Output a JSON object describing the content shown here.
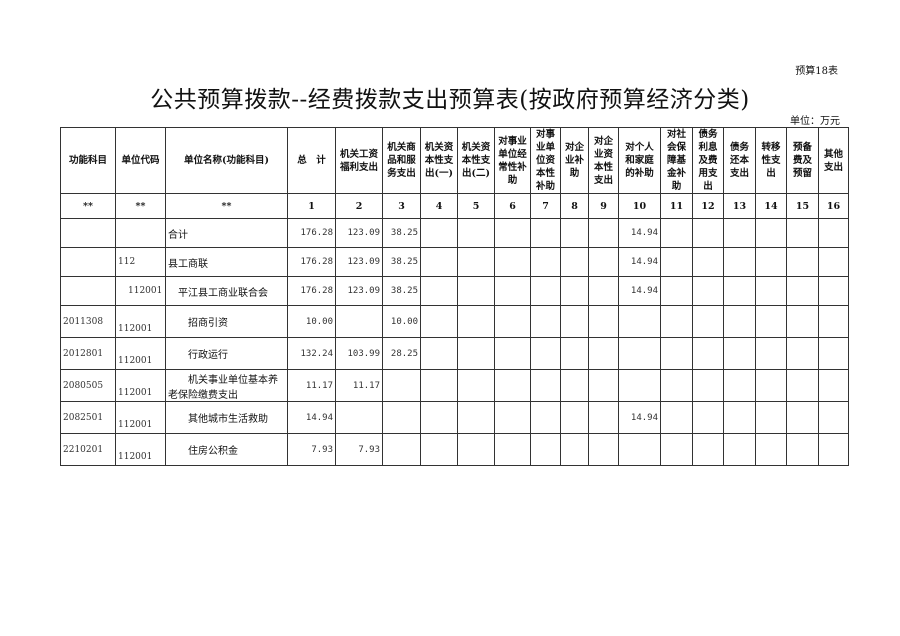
{
  "form_no": "预算18表",
  "title": "公共预算拨款--经费拨款支出预算表(按政府预算经济分类)",
  "unit": "单位：万元",
  "headers": [
    "功能科目",
    "单位代码",
    "单位名称(功能科目)",
    "总　计",
    "机关工资福利支出",
    "机关商品和服务支出",
    "机关资本性支出(一)",
    "机关资本性支出(二)",
    "对事业单位经常性补助",
    "对事业单位资本性补助",
    "对企业补助",
    "对企业资本性支出",
    "对个人和家庭的补助",
    "对社会保障基金补助",
    "债务利息及费用支出",
    "债务还本支出",
    "转移性支出",
    "预备费及预留",
    "其他支出"
  ],
  "column_numbers": [
    "**",
    "**",
    "**",
    "1",
    "2",
    "3",
    "4",
    "5",
    "6",
    "7",
    "8",
    "9",
    "10",
    "11",
    "12",
    "13",
    "14",
    "15",
    "16"
  ],
  "rows": [
    {
      "func": "",
      "code": "",
      "name": "合计",
      "indent": 0,
      "values": [
        "176.28",
        "123.09",
        "38.25",
        "",
        "",
        "",
        "",
        "",
        "",
        "14.94",
        "",
        "",
        "",
        "",
        "",
        ""
      ]
    },
    {
      "func": "",
      "code": "112",
      "name": "县工商联",
      "indent": 0,
      "values": [
        "176.28",
        "123.09",
        "38.25",
        "",
        "",
        "",
        "",
        "",
        "",
        "14.94",
        "",
        "",
        "",
        "",
        "",
        ""
      ]
    },
    {
      "func": "",
      "code": "112001",
      "name": "平江县工商业联合会",
      "indent": 1,
      "values": [
        "176.28",
        "123.09",
        "38.25",
        "",
        "",
        "",
        "",
        "",
        "",
        "14.94",
        "",
        "",
        "",
        "",
        "",
        ""
      ]
    },
    {
      "func": "2011308",
      "code": "112001",
      "name": "招商引资",
      "indent": 2,
      "values": [
        "10.00",
        "",
        "10.00",
        "",
        "",
        "",
        "",
        "",
        "",
        "",
        "",
        "",
        "",
        "",
        "",
        ""
      ]
    },
    {
      "func": "2012801",
      "code": "112001",
      "name": "行政运行",
      "indent": 2,
      "values": [
        "132.24",
        "103.99",
        "28.25",
        "",
        "",
        "",
        "",
        "",
        "",
        "",
        "",
        "",
        "",
        "",
        "",
        ""
      ]
    },
    {
      "func": "2080505",
      "code": "112001",
      "name": "机关事业单位基本养老保险缴费支出",
      "indent": 2,
      "values": [
        "11.17",
        "11.17",
        "",
        "",
        "",
        "",
        "",
        "",
        "",
        "",
        "",
        "",
        "",
        "",
        "",
        ""
      ]
    },
    {
      "func": "2082501",
      "code": "112001",
      "name": "其他城市生活救助",
      "indent": 2,
      "values": [
        "14.94",
        "",
        "",
        "",
        "",
        "",
        "",
        "",
        "",
        "14.94",
        "",
        "",
        "",
        "",
        "",
        ""
      ]
    },
    {
      "func": "2210201",
      "code": "112001",
      "name": "住房公积金",
      "indent": 2,
      "values": [
        "7.93",
        "7.93",
        "",
        "",
        "",
        "",
        "",
        "",
        "",
        "",
        "",
        "",
        "",
        "",
        "",
        ""
      ]
    }
  ]
}
